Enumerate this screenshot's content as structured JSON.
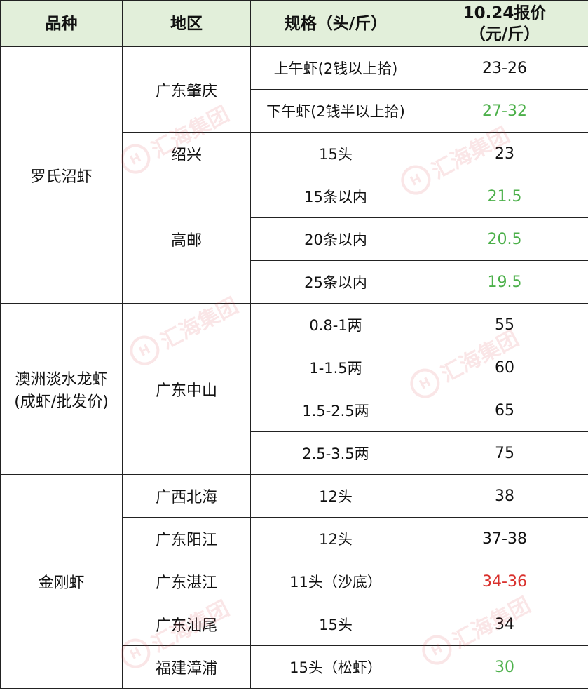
{
  "header": {
    "variety": "品种",
    "region": "地区",
    "spec": "规格（头/斤）",
    "price_line1": "10.24报价",
    "price_line2": "（元/斤）"
  },
  "colors": {
    "header_bg": "#e2efda",
    "up": "#4cb04a",
    "down": "#d9302c",
    "normal": "#111111"
  },
  "watermark": "汇海集团",
  "groups": [
    {
      "variety": "罗氏沼虾",
      "regions": [
        {
          "region": "广东肇庆",
          "specs": [
            {
              "spec": "上午虾(2钱以上拾)",
              "price": "23-26",
              "trend": "normal"
            },
            {
              "spec": "下午虾(2钱半以上拾)",
              "price": "27-32",
              "trend": "up"
            }
          ]
        },
        {
          "region": "绍兴",
          "specs": [
            {
              "spec": "15头",
              "price": "23",
              "trend": "normal"
            }
          ]
        },
        {
          "region": "高邮",
          "specs": [
            {
              "spec": "15条以内",
              "price": "21.5",
              "trend": "up"
            },
            {
              "spec": "20条以内",
              "price": "20.5",
              "trend": "up"
            },
            {
              "spec": "25条以内",
              "price": "19.5",
              "trend": "up"
            }
          ]
        }
      ]
    },
    {
      "variety": "澳洲淡水龙虾(成虾/批发价)",
      "regions": [
        {
          "region": "广东中山",
          "specs": [
            {
              "spec": "0.8-1两",
              "price": "55",
              "trend": "normal"
            },
            {
              "spec": "1-1.5两",
              "price": "60",
              "trend": "normal"
            },
            {
              "spec": "1.5-2.5两",
              "price": "65",
              "trend": "normal"
            },
            {
              "spec": "2.5-3.5两",
              "price": "75",
              "trend": "normal"
            }
          ]
        }
      ]
    },
    {
      "variety": "金刚虾",
      "regions": [
        {
          "region": "广西北海",
          "specs": [
            {
              "spec": "12头",
              "price": "38",
              "trend": "normal"
            }
          ]
        },
        {
          "region": "广东阳江",
          "specs": [
            {
              "spec": "12头",
              "price": "37-38",
              "trend": "normal"
            }
          ]
        },
        {
          "region": "广东湛江",
          "specs": [
            {
              "spec": "11头（沙底）",
              "price": "34-36",
              "trend": "down"
            }
          ]
        },
        {
          "region": "广东汕尾",
          "specs": [
            {
              "spec": "15头",
              "price": "34",
              "trend": "normal"
            }
          ]
        },
        {
          "region": "福建漳浦",
          "specs": [
            {
              "spec": "15头（松虾）",
              "price": "30",
              "trend": "up"
            }
          ]
        }
      ]
    }
  ]
}
